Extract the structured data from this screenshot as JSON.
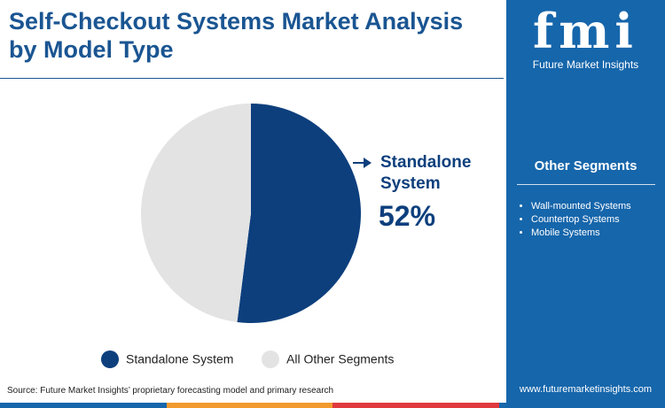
{
  "chart_data": {
    "type": "pie",
    "title": "Self-Checkout Systems Market Analysis by Model Type",
    "categories": [
      "Standalone System",
      "All Other Segments"
    ],
    "values": [
      52,
      48
    ],
    "value_labels": [
      "52%",
      null
    ],
    "colors": [
      "#0d3f7d",
      "#e3e3e3"
    ]
  },
  "sidebar": {
    "title": "Other Segments",
    "items": [
      "Wall-mounted Systems",
      "Countertop Systems",
      "Mobile Systems"
    ]
  },
  "logo": {
    "mark": "fmi",
    "name": "Future Market Insights"
  },
  "footer": {
    "source": "Source: Future Market Insights’ proprietary forecasting model and primary research",
    "website": "www.futuremarketinsights.com"
  }
}
